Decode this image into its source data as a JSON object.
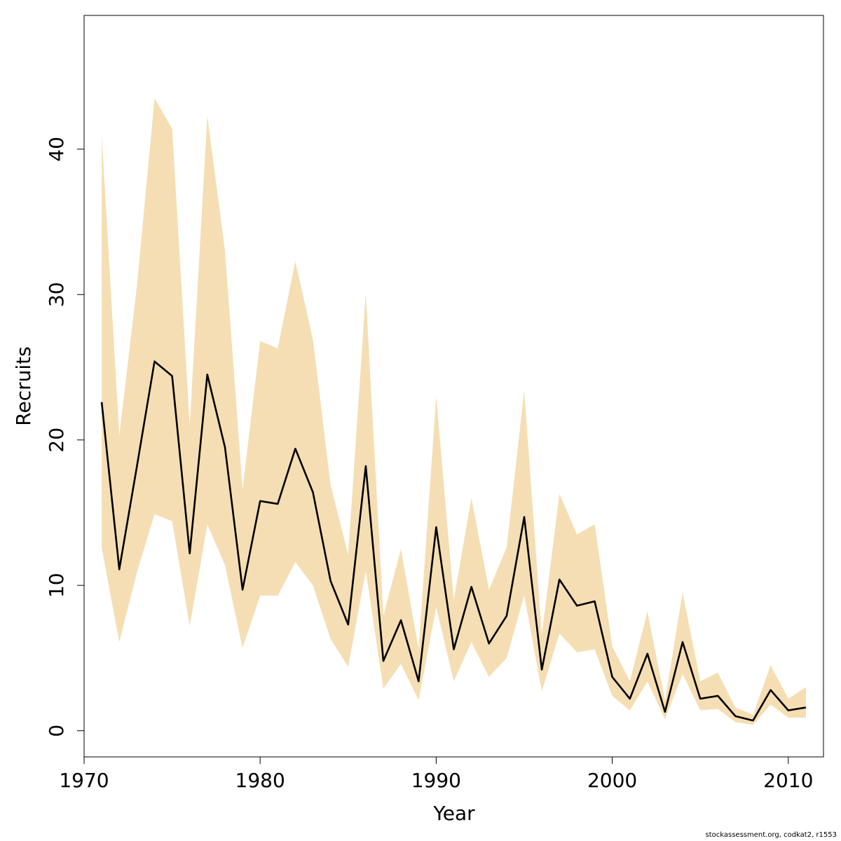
{
  "chart_data": {
    "type": "area",
    "title": "",
    "xlabel": "Year",
    "ylabel": "Recruits",
    "xlim": [
      1970,
      2012
    ],
    "ylim": [
      -1.8,
      49.2
    ],
    "x_ticks": [
      1970,
      1980,
      1990,
      2000,
      2010
    ],
    "y_ticks": [
      0,
      10,
      20,
      30,
      40
    ],
    "grid": false,
    "legend": "none",
    "band_color": "#F5DEB3",
    "line_color": "#000000",
    "x": [
      1971,
      1972,
      1973,
      1974,
      1975,
      1976,
      1977,
      1978,
      1979,
      1980,
      1981,
      1982,
      1983,
      1984,
      1985,
      1986,
      1987,
      1988,
      1989,
      1990,
      1991,
      1992,
      1993,
      1994,
      1995,
      1996,
      1997,
      1998,
      1999,
      2000,
      2001,
      2002,
      2003,
      2004,
      2005,
      2006,
      2007,
      2008,
      2009,
      2010,
      2011
    ],
    "series": [
      {
        "values": [
          22.6,
          11.1,
          18.2,
          25.4,
          24.4,
          12.2,
          24.5,
          19.5,
          9.7,
          15.8,
          15.6,
          19.4,
          16.4,
          10.3,
          7.3,
          18.2,
          4.8,
          7.6,
          3.4,
          14.0,
          5.6,
          9.9,
          6.0,
          7.9,
          14.7,
          4.2,
          10.4,
          8.6,
          8.9,
          3.7,
          2.2,
          5.3,
          1.3,
          6.1,
          2.2,
          2.4,
          1.0,
          0.7,
          2.8,
          1.4,
          1.6
        ]
      },
      {
        "name": "lower",
        "values": [
          12.6,
          6.1,
          10.9,
          14.9,
          14.4,
          7.2,
          14.2,
          11.4,
          5.7,
          9.3,
          9.3,
          11.6,
          10.0,
          6.3,
          4.4,
          11.0,
          2.9,
          4.6,
          2.1,
          8.5,
          3.4,
          6.1,
          3.7,
          5.0,
          9.3,
          2.7,
          6.7,
          5.4,
          5.6,
          2.4,
          1.4,
          3.4,
          0.8,
          3.9,
          1.4,
          1.5,
          0.6,
          0.4,
          1.8,
          0.9,
          0.9
        ]
      },
      {
        "name": "upper",
        "values": [
          41.0,
          20.3,
          30.6,
          43.5,
          41.4,
          21.0,
          42.3,
          33.0,
          16.6,
          26.8,
          26.3,
          32.3,
          26.9,
          16.9,
          12.1,
          30.1,
          7.9,
          12.5,
          5.6,
          23.0,
          9.0,
          16.0,
          9.7,
          12.6,
          23.4,
          6.6,
          16.3,
          13.5,
          14.2,
          5.8,
          3.4,
          8.2,
          2.1,
          9.5,
          3.4,
          4.0,
          1.6,
          1.1,
          4.5,
          2.2,
          3.0
        ]
      }
    ]
  },
  "footer": {
    "text": "stockassessment.org, codkat2, r1553"
  }
}
